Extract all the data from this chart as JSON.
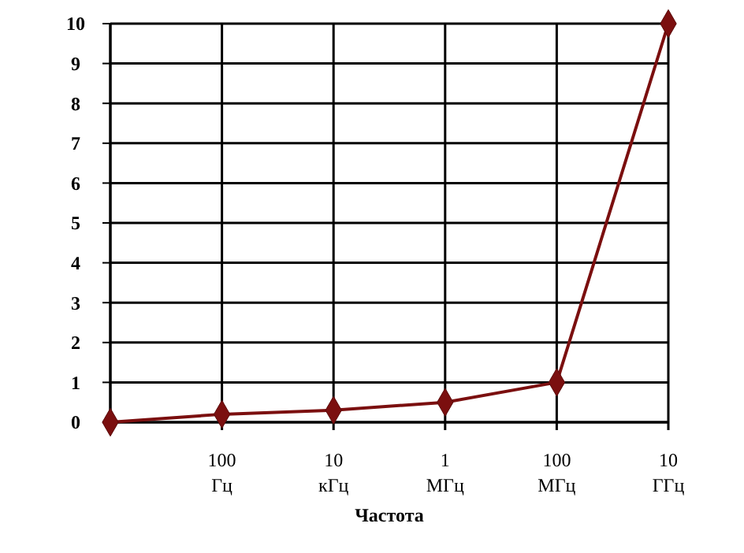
{
  "chart_data": {
    "type": "line",
    "xlabel": "Частота",
    "categories": [
      null,
      "100 Гц",
      "10 кГц",
      "1 МГц",
      "100 МГц",
      "10 ГГц"
    ],
    "series": [
      {
        "color": "#7b0f0f",
        "values": [
          0,
          0.2,
          0.3,
          0.5,
          1,
          10
        ]
      }
    ],
    "ylim": [
      0,
      10
    ],
    "yticks": [
      0,
      1,
      2,
      3,
      4,
      5,
      6,
      7,
      8,
      9,
      10
    ],
    "grid": true,
    "marker": "diamond",
    "line_style": "solid"
  }
}
